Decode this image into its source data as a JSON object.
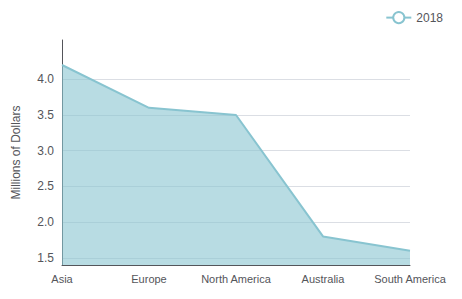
{
  "chart_data": {
    "type": "area",
    "ylabel": "Millions of Dollars",
    "categories": [
      "Asia",
      "Europe",
      "North America",
      "Australia",
      "South America"
    ],
    "series": [
      {
        "name": "2018",
        "color": "#88c4d0",
        "values": [
          4.2,
          3.6,
          3.5,
          1.8,
          1.6
        ]
      }
    ],
    "ylim": [
      1.4,
      4.55
    ],
    "yticks": [
      1.5,
      {
        "value": 2.0,
        "label": "2.0"
      },
      2.5,
      {
        "value": 3.0,
        "label": "3.0"
      },
      3.5,
      {
        "value": 4.0,
        "label": "4.0"
      }
    ],
    "grid": true,
    "legend": "upper right"
  }
}
